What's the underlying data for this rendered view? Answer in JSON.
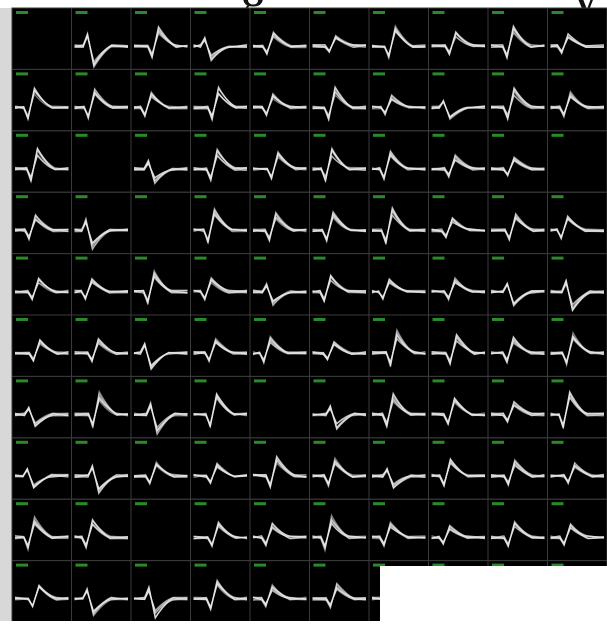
{
  "header": {
    "fragments": [
      "g",
      "y"
    ]
  }
}
